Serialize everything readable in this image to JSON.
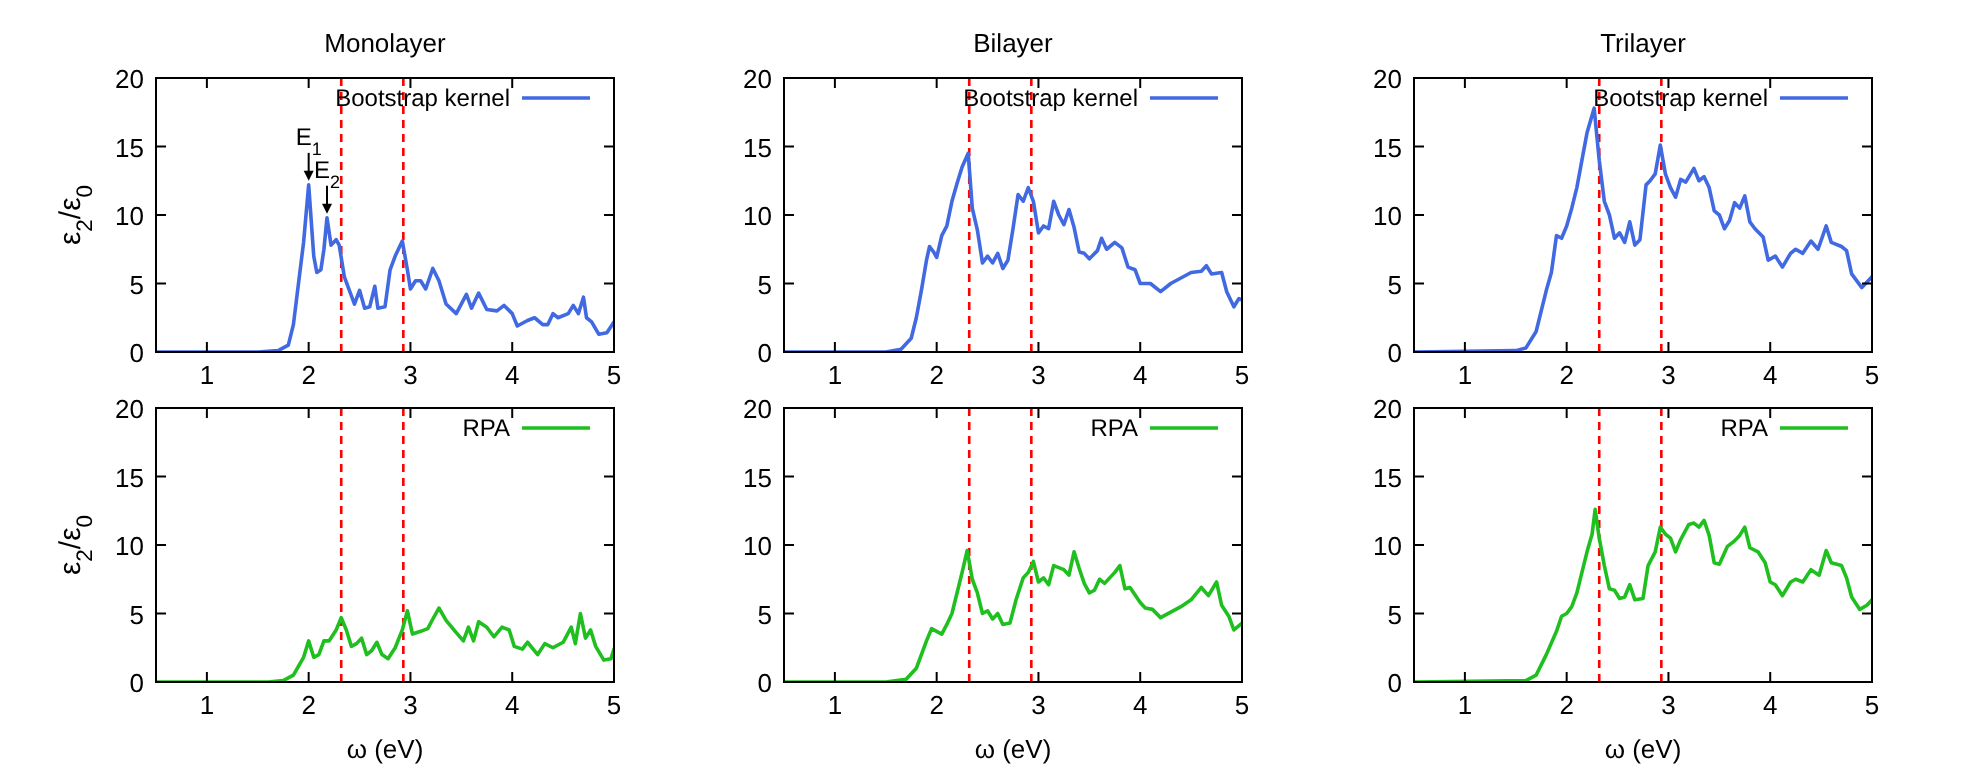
{
  "chart_data": [
    {
      "type": "line",
      "title": "Monolayer",
      "ylabel": "ε$_{2}$/ε$_{0}$",
      "xlim": [
        0.5,
        5
      ],
      "xticks": [
        1,
        2,
        3,
        4,
        5
      ],
      "ylim": [
        0,
        20
      ],
      "yticks": [
        0,
        5,
        10,
        15,
        20
      ],
      "legend": "top right",
      "line_style": "solid",
      "ref_lines": [
        {
          "axis": "x",
          "value": 2.32,
          "color": "#ff0000",
          "line_style": "dashed"
        },
        {
          "axis": "x",
          "value": 2.93,
          "color": "#ff0000",
          "line_style": "dashed"
        }
      ],
      "annotations": [
        {
          "text": "E$_{1}$",
          "x": 2.0,
          "y": 12.2
        },
        {
          "text": "E$_{2}$",
          "x": 2.18,
          "y": 9.8
        }
      ],
      "series": [
        {
          "name": "Bootstrap kernel",
          "color": "#4169e1",
          "x": [
            0.5,
            1.5,
            1.7,
            1.8,
            1.85,
            1.9,
            1.95,
            2.0,
            2.05,
            2.08,
            2.12,
            2.15,
            2.18,
            2.22,
            2.27,
            2.3,
            2.35,
            2.4,
            2.45,
            2.5,
            2.55,
            2.6,
            2.65,
            2.68,
            2.75,
            2.8,
            2.85,
            2.92,
            2.97,
            3.0,
            3.05,
            3.1,
            3.15,
            3.22,
            3.28,
            3.35,
            3.45,
            3.55,
            3.6,
            3.67,
            3.75,
            3.85,
            3.92,
            4.0,
            4.05,
            4.15,
            4.22,
            4.3,
            4.35,
            4.4,
            4.45,
            4.55,
            4.6,
            4.65,
            4.7,
            4.73,
            4.78,
            4.85,
            4.93,
            5
          ],
          "values": [
            0,
            0,
            0.1,
            0.5,
            2,
            5,
            8,
            12.2,
            7,
            5.8,
            6,
            7.5,
            9.8,
            7.8,
            8.2,
            7.8,
            5.5,
            4.5,
            3.5,
            4.5,
            3.2,
            3.3,
            4.8,
            3.2,
            3.3,
            6,
            7,
            8.1,
            6,
            4.6,
            5.2,
            5.2,
            4.6,
            6.1,
            5.2,
            3.5,
            2.8,
            4.2,
            3.2,
            4.3,
            3.1,
            3.0,
            3.4,
            2.8,
            1.9,
            2.3,
            2.5,
            2.0,
            2.0,
            2.8,
            2.5,
            2.8,
            3.4,
            2.8,
            4.0,
            2.5,
            2.2,
            1.3,
            1.4,
            2.2
          ]
        }
      ]
    },
    {
      "type": "line",
      "title": "Bilayer",
      "xlim": [
        0.5,
        5
      ],
      "xticks": [
        1,
        2,
        3,
        4,
        5
      ],
      "ylim": [
        0,
        20
      ],
      "yticks": [
        0,
        5,
        10,
        15,
        20
      ],
      "legend": "top right",
      "line_style": "solid",
      "ref_lines": [
        {
          "axis": "x",
          "value": 2.32,
          "color": "#ff0000",
          "line_style": "dashed"
        },
        {
          "axis": "x",
          "value": 2.93,
          "color": "#ff0000",
          "line_style": "dashed"
        }
      ],
      "series": [
        {
          "name": "Bootstrap kernel",
          "color": "#4169e1",
          "x": [
            0.5,
            1.5,
            1.65,
            1.75,
            1.8,
            1.85,
            1.9,
            1.93,
            1.97,
            2.0,
            2.05,
            2.1,
            2.15,
            2.2,
            2.25,
            2.31,
            2.35,
            2.4,
            2.45,
            2.5,
            2.55,
            2.6,
            2.65,
            2.7,
            2.75,
            2.8,
            2.85,
            2.9,
            2.95,
            3.0,
            3.05,
            3.1,
            3.15,
            3.2,
            3.25,
            3.3,
            3.35,
            3.4,
            3.45,
            3.5,
            3.58,
            3.62,
            3.67,
            3.75,
            3.82,
            3.88,
            3.95,
            4.0,
            4.1,
            4.2,
            4.3,
            4.4,
            4.5,
            4.6,
            4.65,
            4.7,
            4.8,
            4.85,
            4.92,
            4.97,
            5
          ],
          "values": [
            0,
            0,
            0.2,
            1,
            2.5,
            4.5,
            6.7,
            7.7,
            7.3,
            6.9,
            8.5,
            9.2,
            11,
            12.3,
            13.5,
            14.5,
            10.5,
            8.9,
            6.5,
            7,
            6.5,
            7.2,
            6.1,
            6.7,
            9,
            11.5,
            11,
            12,
            11,
            8.7,
            9.2,
            9.0,
            11,
            10,
            9.3,
            10.4,
            9.1,
            7.3,
            7.2,
            6.8,
            7.4,
            8.3,
            7.5,
            8.0,
            7.6,
            6.2,
            6.0,
            5.0,
            5.0,
            4.4,
            5.0,
            5.4,
            5.8,
            5.9,
            6.3,
            5.7,
            5.8,
            4.4,
            3.3,
            3.9,
            3.8
          ]
        }
      ]
    },
    {
      "type": "line",
      "title": "Trilayer",
      "xlim": [
        0.5,
        5
      ],
      "xticks": [
        1,
        2,
        3,
        4,
        5
      ],
      "ylim": [
        0,
        20
      ],
      "yticks": [
        0,
        5,
        10,
        15,
        20
      ],
      "legend": "top right",
      "line_style": "solid",
      "ref_lines": [
        {
          "axis": "x",
          "value": 2.32,
          "color": "#ff0000",
          "line_style": "dashed"
        },
        {
          "axis": "x",
          "value": 2.93,
          "color": "#ff0000",
          "line_style": "dashed"
        }
      ],
      "series": [
        {
          "name": "Bootstrap kernel",
          "color": "#4169e1",
          "x": [
            0.5,
            1.5,
            1.6,
            1.7,
            1.8,
            1.85,
            1.9,
            1.95,
            2.0,
            2.05,
            2.1,
            2.15,
            2.2,
            2.27,
            2.32,
            2.37,
            2.42,
            2.47,
            2.52,
            2.57,
            2.62,
            2.67,
            2.72,
            2.78,
            2.82,
            2.87,
            2.92,
            2.97,
            3.02,
            3.07,
            3.12,
            3.17,
            3.25,
            3.3,
            3.35,
            3.4,
            3.45,
            3.5,
            3.55,
            3.6,
            3.65,
            3.7,
            3.75,
            3.8,
            3.85,
            3.93,
            3.98,
            4.05,
            4.12,
            4.2,
            4.25,
            4.32,
            4.4,
            4.47,
            4.55,
            4.6,
            4.7,
            4.75,
            4.8,
            4.9,
            5
          ],
          "values": [
            0,
            0.1,
            0.3,
            1.5,
            4.5,
            5.8,
            8.5,
            8.3,
            9.2,
            10.5,
            12,
            14,
            16,
            17.8,
            14,
            11,
            10,
            8.3,
            8.7,
            8,
            9.5,
            7.8,
            8.2,
            12.2,
            12.5,
            13,
            15.1,
            13,
            12,
            11.3,
            12.6,
            12.4,
            13.4,
            12.5,
            12.8,
            12,
            10.3,
            10,
            9,
            9.6,
            10.9,
            10.5,
            11.4,
            9.5,
            9,
            8.4,
            6.7,
            7.0,
            6.2,
            7.2,
            7.5,
            7.2,
            8.1,
            7.5,
            9.2,
            8,
            7.7,
            7.4,
            5.7,
            4.7,
            5.5
          ]
        }
      ]
    },
    {
      "type": "line",
      "xlabel": "ω (eV)",
      "ylabel": "ε$_{2}$/ε$_{0}$",
      "xlim": [
        0.5,
        5
      ],
      "xticks": [
        1,
        2,
        3,
        4,
        5
      ],
      "ylim": [
        0,
        20
      ],
      "yticks": [
        0,
        5,
        10,
        15,
        20
      ],
      "legend": "top right",
      "line_style": "solid",
      "ref_lines": [
        {
          "axis": "x",
          "value": 2.32,
          "color": "#ff0000",
          "line_style": "dashed"
        },
        {
          "axis": "x",
          "value": 2.93,
          "color": "#ff0000",
          "line_style": "dashed"
        }
      ],
      "series": [
        {
          "name": "RPA",
          "color": "#1fbf1f",
          "x": [
            0.5,
            1.6,
            1.75,
            1.85,
            1.95,
            2.0,
            2.05,
            2.1,
            2.15,
            2.2,
            2.27,
            2.32,
            2.37,
            2.42,
            2.47,
            2.52,
            2.57,
            2.62,
            2.67,
            2.72,
            2.78,
            2.85,
            2.92,
            2.97,
            3.02,
            3.1,
            3.17,
            3.22,
            3.28,
            3.35,
            3.45,
            3.52,
            3.57,
            3.62,
            3.67,
            3.75,
            3.82,
            3.9,
            3.97,
            4.02,
            4.1,
            4.15,
            4.25,
            4.32,
            4.4,
            4.5,
            4.58,
            4.62,
            4.67,
            4.72,
            4.77,
            4.82,
            4.9,
            4.97,
            5
          ],
          "values": [
            0,
            0,
            0.1,
            0.5,
            1.8,
            3.0,
            1.8,
            2.0,
            3.0,
            3.0,
            3.8,
            4.7,
            3.8,
            2.6,
            2.8,
            3.2,
            2.0,
            2.3,
            2.9,
            2.0,
            1.7,
            2.5,
            3.8,
            5.2,
            3.5,
            3.7,
            3.9,
            4.6,
            5.4,
            4.5,
            3.6,
            3.0,
            4.0,
            3.0,
            4.4,
            4.0,
            3.3,
            4.0,
            3.8,
            2.6,
            2.4,
            2.9,
            2.0,
            2.8,
            2.5,
            2.9,
            4.0,
            2.8,
            5.0,
            3.2,
            3.8,
            2.6,
            1.6,
            1.7,
            2.4
          ]
        }
      ]
    },
    {
      "type": "line",
      "xlabel": "ω (eV)",
      "xlim": [
        0.5,
        5
      ],
      "xticks": [
        1,
        2,
        3,
        4,
        5
      ],
      "ylim": [
        0,
        20
      ],
      "yticks": [
        0,
        5,
        10,
        15,
        20
      ],
      "legend": "top right",
      "line_style": "solid",
      "ref_lines": [
        {
          "axis": "x",
          "value": 2.32,
          "color": "#ff0000",
          "line_style": "dashed"
        },
        {
          "axis": "x",
          "value": 2.93,
          "color": "#ff0000",
          "line_style": "dashed"
        }
      ],
      "series": [
        {
          "name": "RPA",
          "color": "#1fbf1f",
          "x": [
            0.5,
            1.5,
            1.7,
            1.8,
            1.9,
            1.95,
            2.0,
            2.05,
            2.1,
            2.15,
            2.2,
            2.25,
            2.3,
            2.35,
            2.4,
            2.45,
            2.5,
            2.55,
            2.6,
            2.65,
            2.72,
            2.78,
            2.85,
            2.9,
            2.95,
            3.0,
            3.05,
            3.1,
            3.15,
            3.25,
            3.3,
            3.35,
            3.4,
            3.45,
            3.5,
            3.55,
            3.6,
            3.65,
            3.75,
            3.8,
            3.85,
            3.9,
            4.0,
            4.05,
            4.12,
            4.2,
            4.3,
            4.4,
            4.5,
            4.6,
            4.67,
            4.75,
            4.8,
            4.87,
            4.92,
            5
          ],
          "values": [
            0,
            0,
            0.2,
            1,
            3,
            3.9,
            3.7,
            3.5,
            4.2,
            5,
            6.5,
            8,
            9.6,
            7.5,
            6.5,
            5.0,
            5.2,
            4.6,
            5.0,
            4.2,
            4.3,
            6,
            7.6,
            8.0,
            8.8,
            7.3,
            7.6,
            7.1,
            8.5,
            8.2,
            7.8,
            9.5,
            8.3,
            7.2,
            6.5,
            6.7,
            7.5,
            7.2,
            8.0,
            8.5,
            6.8,
            6.9,
            5.8,
            5.4,
            5.3,
            4.7,
            5.1,
            5.5,
            6.0,
            6.9,
            6.3,
            7.3,
            5.6,
            4.8,
            3.8,
            4.3
          ]
        }
      ]
    },
    {
      "type": "line",
      "xlabel": "ω (eV)",
      "xlim": [
        0.5,
        5
      ],
      "xticks": [
        1,
        2,
        3,
        4,
        5
      ],
      "ylim": [
        0,
        20
      ],
      "yticks": [
        0,
        5,
        10,
        15,
        20
      ],
      "legend": "top right",
      "line_style": "solid",
      "ref_lines": [
        {
          "axis": "x",
          "value": 2.32,
          "color": "#ff0000",
          "line_style": "dashed"
        },
        {
          "axis": "x",
          "value": 2.93,
          "color": "#ff0000",
          "line_style": "dashed"
        }
      ],
      "series": [
        {
          "name": "RPA",
          "color": "#1fbf1f",
          "x": [
            0.5,
            1.6,
            1.7,
            1.8,
            1.9,
            1.95,
            2.0,
            2.05,
            2.1,
            2.15,
            2.2,
            2.25,
            2.28,
            2.32,
            2.37,
            2.42,
            2.47,
            2.52,
            2.57,
            2.62,
            2.67,
            2.75,
            2.8,
            2.87,
            2.92,
            2.97,
            3.02,
            3.07,
            3.12,
            3.2,
            3.25,
            3.3,
            3.35,
            3.4,
            3.45,
            3.5,
            3.58,
            3.65,
            3.7,
            3.75,
            3.8,
            3.88,
            3.95,
            4.0,
            4.05,
            4.12,
            4.2,
            4.25,
            4.32,
            4.4,
            4.48,
            4.55,
            4.6,
            4.7,
            4.75,
            4.8,
            4.88,
            4.95,
            5
          ],
          "values": [
            0,
            0.1,
            0.5,
            2,
            3.7,
            4.8,
            5,
            5.5,
            6.5,
            8,
            9.5,
            10.8,
            12.6,
            10.5,
            8.5,
            6.8,
            6.7,
            6.1,
            6.2,
            7.1,
            6,
            6.1,
            8.5,
            9.5,
            11.3,
            10.8,
            10.5,
            9.5,
            10.4,
            11.5,
            11.6,
            11.3,
            11.8,
            10.7,
            8.7,
            8.6,
            9.9,
            10.3,
            10.7,
            11.3,
            9.8,
            9.5,
            8.7,
            7.3,
            7.1,
            6.3,
            7.3,
            7.5,
            7.3,
            8.2,
            7.8,
            9.6,
            8.7,
            8.5,
            7.6,
            6.2,
            5.3,
            5.6,
            6
          ]
        }
      ]
    }
  ]
}
